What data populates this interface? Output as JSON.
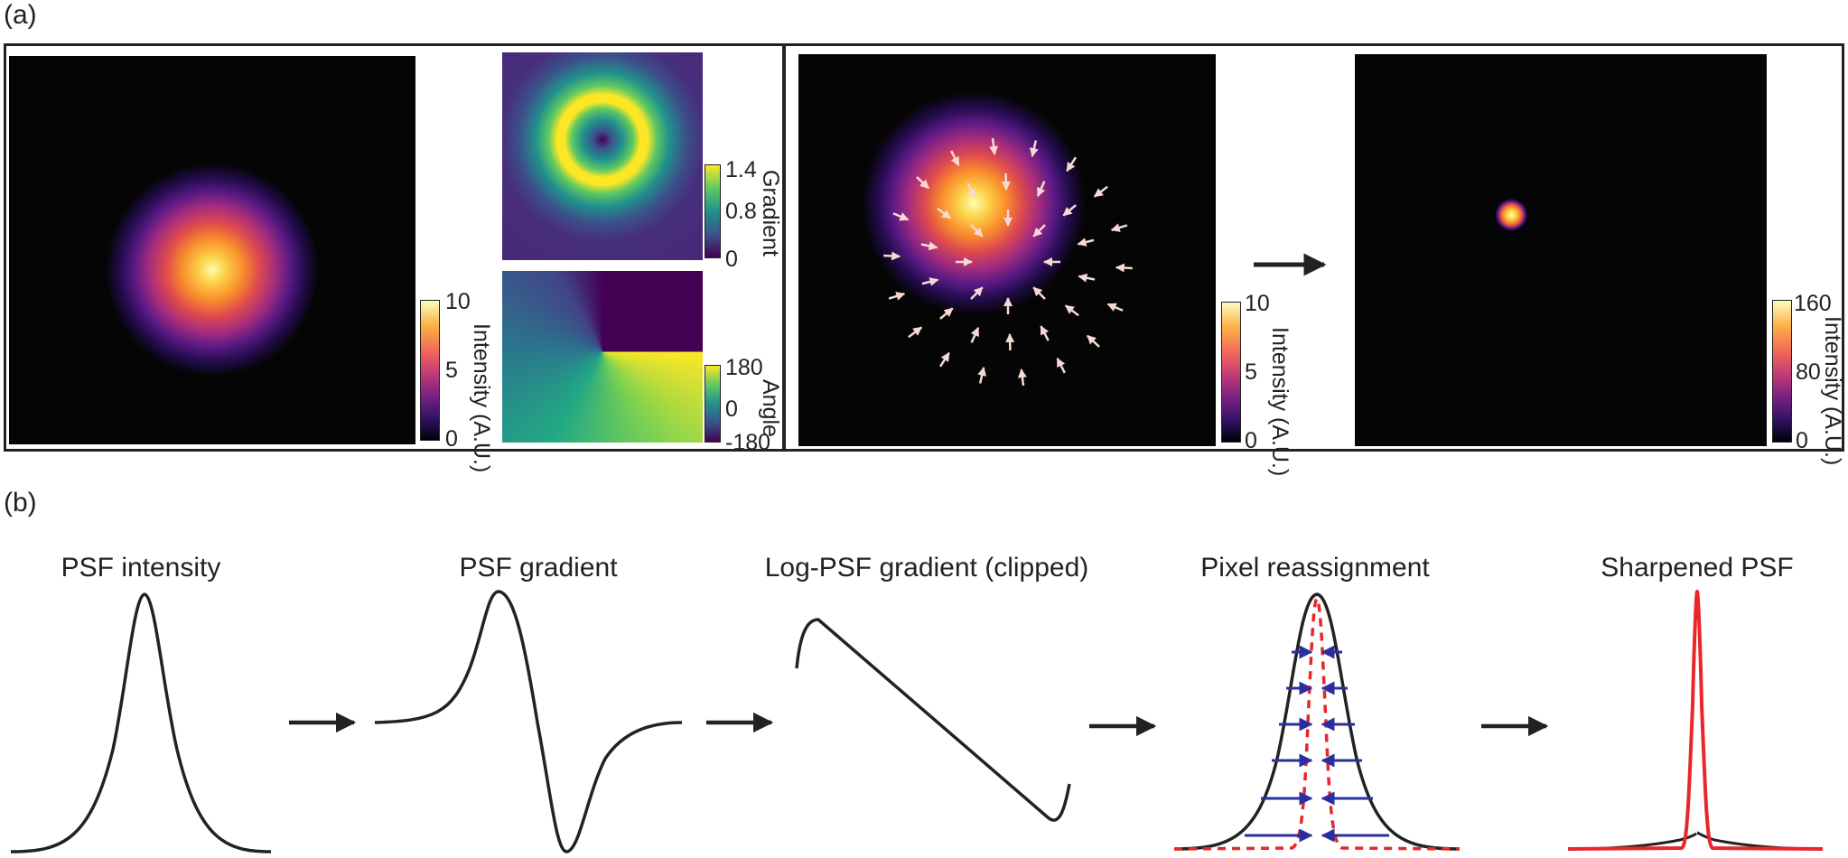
{
  "panel_a": {
    "label": "(a)",
    "intensity_colorbar": {
      "ticks": [
        "10",
        "5",
        "0"
      ],
      "label": "Intensity (A.U.)"
    },
    "gradient_colorbar": {
      "ticks": [
        "1.4",
        "0.8",
        "0"
      ],
      "label": "Gradient"
    },
    "angle_colorbar": {
      "ticks": [
        "180",
        "0",
        "-180"
      ],
      "label": "Angle"
    },
    "intensity_colorbar_2": {
      "ticks": [
        "10",
        "5",
        "0"
      ],
      "label": "Intensity (A.U.)"
    },
    "sharpened_colorbar": {
      "ticks": [
        "160",
        "80",
        "0"
      ],
      "label": "Intensity (A.U.)"
    }
  },
  "panel_b": {
    "label": "(b)",
    "steps": [
      {
        "title": "PSF intensity"
      },
      {
        "title": "PSF gradient"
      },
      {
        "title": "Log-PSF gradient (clipped)"
      },
      {
        "title": "Pixel reassignment"
      },
      {
        "title": "Sharpened PSF"
      }
    ]
  },
  "colors": {
    "curve": "#222222",
    "sharpened": "#e8262b",
    "reassign_arrows": "#2b2f9e",
    "vector_arrows": "#f6d8d4",
    "image_background": "#050505"
  },
  "icons": {
    "flow_arrow": "right-arrow-icon",
    "vector_arrow": "inward-arrow-icon"
  }
}
